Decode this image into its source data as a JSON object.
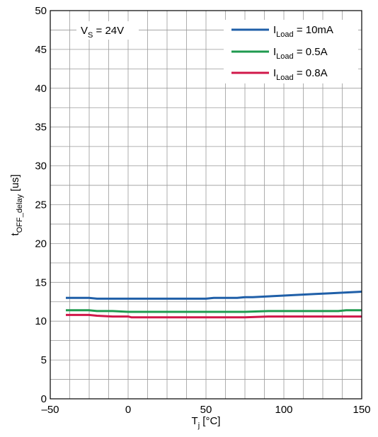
{
  "chart_data": {
    "type": "line",
    "title": "",
    "annotation": {
      "main": "V",
      "sub": "S",
      "rest": " = 24V"
    },
    "xlabel": {
      "main": "T",
      "sub": "j",
      "rest": " [°C]"
    },
    "ylabel": {
      "main": "t",
      "sub": "OFF_delay",
      "rest": " [us]"
    },
    "xlim": [
      -50,
      150
    ],
    "ylim": [
      0,
      50
    ],
    "xticks": [
      -50,
      0,
      50,
      100,
      150
    ],
    "xtick_labels": [
      "–50",
      "0",
      "50",
      "100",
      "150"
    ],
    "yticks": [
      0,
      5,
      10,
      15,
      20,
      25,
      30,
      35,
      40,
      45,
      50
    ],
    "ytick_labels": [
      "0",
      "5",
      "10",
      "15",
      "20",
      "25",
      "30",
      "35",
      "40",
      "45",
      "50"
    ],
    "grid": true,
    "legend_position": "top-right",
    "series": [
      {
        "legend": {
          "main": "I",
          "sub": "Load",
          "rest": " = 10mA"
        },
        "color": "#1f5fa8",
        "x": [
          -40,
          -25,
          -20,
          0,
          25,
          50,
          55,
          70,
          75,
          80,
          90,
          100,
          110,
          120,
          130,
          140,
          150
        ],
        "y": [
          13.0,
          13.0,
          12.9,
          12.9,
          12.9,
          12.9,
          13.0,
          13.0,
          13.1,
          13.1,
          13.2,
          13.3,
          13.4,
          13.5,
          13.6,
          13.7,
          13.8
        ]
      },
      {
        "legend": {
          "main": "I",
          "sub": "Load",
          "rest": " = 0.5A"
        },
        "color": "#1f9a4f",
        "x": [
          -40,
          -25,
          -20,
          -10,
          0,
          25,
          50,
          75,
          90,
          100,
          120,
          135,
          140,
          150
        ],
        "y": [
          11.4,
          11.4,
          11.3,
          11.3,
          11.2,
          11.2,
          11.2,
          11.2,
          11.3,
          11.3,
          11.3,
          11.3,
          11.4,
          11.4
        ]
      },
      {
        "legend": {
          "main": "I",
          "sub": "Load",
          "rest": " = 0.8A"
        },
        "color": "#d0184a",
        "x": [
          -40,
          -25,
          -20,
          -10,
          0,
          2,
          25,
          50,
          75,
          90,
          100,
          120,
          140,
          150
        ],
        "y": [
          10.8,
          10.8,
          10.7,
          10.6,
          10.6,
          10.5,
          10.5,
          10.5,
          10.5,
          10.6,
          10.6,
          10.6,
          10.6,
          10.6
        ]
      }
    ]
  }
}
